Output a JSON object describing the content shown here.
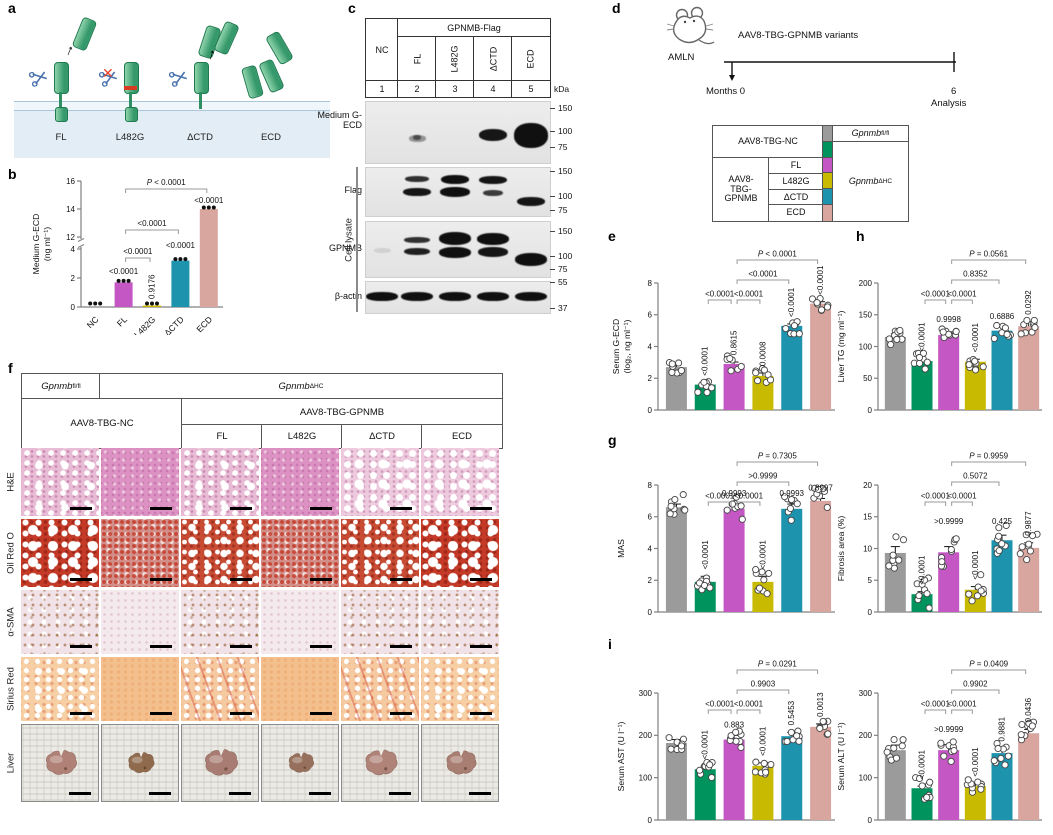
{
  "letters": {
    "a": "a",
    "b": "b",
    "c": "c",
    "d": "d",
    "e": "e",
    "f": "f",
    "g": "g",
    "h": "h",
    "i": "i"
  },
  "colors": {
    "groups": [
      "#9B9B9B",
      "#00935E",
      "#C457C4",
      "#C7BA00",
      "#1D93AE",
      "#D8A69E"
    ],
    "accent_green_construct": "#35996b",
    "scissors_blue": "#4a72ad",
    "block_red": "#e8432a"
  },
  "panel_a": {
    "labels": [
      "FL",
      "L482G",
      "ΔCTD",
      "ECD"
    ]
  },
  "panel_c": {
    "header_group": "GPNMB-Flag",
    "lanes": [
      "NC",
      "FL",
      "L482G",
      "ΔCTD",
      "ECD"
    ],
    "lane_numbers": [
      "1",
      "2",
      "3",
      "4",
      "5"
    ],
    "kda_label": "kDa",
    "side_label": "Cell lysate",
    "blots": [
      {
        "label": "Medium G-ECD",
        "markers": [
          150,
          100,
          75
        ]
      },
      {
        "label": "Flag",
        "markers": [
          150,
          100,
          75
        ]
      },
      {
        "label": "GPNMB",
        "markers": [
          150,
          100,
          75
        ]
      },
      {
        "label": "β-actin",
        "markers": [
          55,
          37
        ]
      }
    ]
  },
  "panel_d": {
    "model_label": "AMLN",
    "variants_label": "AAV8-TBG-GPNMB variants",
    "timeline_start": "Months 0",
    "timeline_end": "6",
    "timeline_end_sub": "Analysis",
    "table": {
      "nc_label": "AAV8-TBG-NC",
      "gpnmb_label": "AAV8-TBG-GPNMB",
      "variants": [
        "FL",
        "L482G",
        "ΔCTD",
        "ECD"
      ],
      "genotype_flfl": {
        "base": "Gpnmb",
        "sup": "fl/fl"
      },
      "genotype_dhc": {
        "base": "Gpnmb",
        "sup": "ΔHC"
      }
    }
  },
  "panel_f": {
    "genotype_flfl": {
      "base": "Gpnmb",
      "sup": "fl/fl"
    },
    "genotype_dhc": {
      "base": "Gpnmb",
      "sup": "ΔHC"
    },
    "nc_label": "AAV8-TBG-NC",
    "gpnmb_label": "AAV8-TBG-GPNMB",
    "variants": [
      "FL",
      "L482G",
      "ΔCTD",
      "ECD"
    ],
    "stains": [
      "H&E",
      "Oil Red O",
      "α-SMA",
      "Sirius Red",
      "Liver"
    ]
  },
  "chart_data": [
    {
      "id": "b",
      "type": "bar",
      "broken_axis": true,
      "ylabel_lines": [
        "Medium G-ECD",
        "(ng ml⁻¹)"
      ],
      "categories": [
        "NC",
        "FL",
        "L482G",
        "ΔCTD",
        "ECD"
      ],
      "values": [
        0.05,
        1.7,
        0.1,
        3.2,
        14
      ],
      "bar_colors": [
        "none",
        "#C457C4",
        "#C7BA00",
        "#1D93AE",
        "#D8A69E"
      ],
      "axis": {
        "lower_ticks": [
          0,
          2,
          4
        ],
        "upper_ticks": [
          12,
          14,
          16
        ]
      },
      "bar_pvalues": [
        null,
        {
          "text": "<0.0001",
          "rotated": false
        },
        {
          "text": "0.9176",
          "rotated": true
        },
        {
          "text": "<0.0001",
          "rotated": false
        },
        {
          "text": "<0.0001",
          "rotated": false
        }
      ],
      "brackets": [
        {
          "from": 1,
          "to": 4,
          "label": "P < 0.0001"
        },
        {
          "from": 1,
          "to": 3,
          "label": "<0.0001"
        },
        {
          "from": 1,
          "to": 2,
          "label": "<0.0001"
        }
      ]
    },
    {
      "id": "e",
      "type": "bar",
      "ylabel_lines": [
        "Serum G-ECD",
        "(log₂, ng ml⁻¹)"
      ],
      "ymax": 8,
      "yticks": [
        0,
        2,
        4,
        6,
        8
      ],
      "values": [
        2.7,
        1.6,
        2.9,
        2.15,
        5.3,
        6.7
      ],
      "errors": [
        0.1,
        0.12,
        0.12,
        0.18,
        0.12,
        0.12
      ],
      "spread": 0.55,
      "dots": 8,
      "bar_pvalues": [
        null,
        {
          "text": "<0.0001",
          "rotated": true
        },
        {
          "text": "0.8615",
          "rotated": true
        },
        {
          "text": "0.0008",
          "rotated": true
        },
        {
          "text": "<0.0001",
          "rotated": true
        },
        {
          "text": "<0.0001",
          "rotated": true
        }
      ],
      "brackets": [
        {
          "from": 1,
          "to": 2,
          "label": "<0.0001",
          "level": 0
        },
        {
          "from": 2,
          "to": 3,
          "label": "<0.0001",
          "level": 0
        },
        {
          "from": 2,
          "to": 4,
          "label": "<0.0001",
          "level": 1
        },
        {
          "from": 2,
          "to": 5,
          "label": "P < 0.0001",
          "level": 2
        }
      ]
    },
    {
      "id": "h",
      "type": "bar",
      "ylabel_lines": [
        "Liver TG (mg ml⁻¹)"
      ],
      "ymax": 200,
      "yticks": [
        0,
        50,
        100,
        150,
        200
      ],
      "values": [
        115,
        77,
        118,
        76,
        125,
        132
      ],
      "errors": [
        5,
        4,
        5,
        4,
        6,
        7
      ],
      "spread": 13,
      "dots": 9,
      "bar_pvalues": [
        null,
        {
          "text": "<0.0001",
          "rotated": true
        },
        {
          "text": "0.9998",
          "rotated": false
        },
        {
          "text": "<0.0001",
          "rotated": true
        },
        {
          "text": "0.6886",
          "rotated": false
        },
        {
          "text": "0.0292",
          "rotated": true
        }
      ],
      "brackets": [
        {
          "from": 1,
          "to": 2,
          "label": "<0.0001",
          "level": 0
        },
        {
          "from": 2,
          "to": 3,
          "label": "<0.0001",
          "level": 0
        },
        {
          "from": 2,
          "to": 4,
          "label": "0.8352",
          "level": 1
        },
        {
          "from": 2,
          "to": 5,
          "label": "P = 0.0561",
          "level": 2
        }
      ]
    },
    {
      "id": "g",
      "type": "bar",
      "ylabel_lines": [
        "MAS"
      ],
      "ymax": 8,
      "yticks": [
        0,
        2,
        4,
        6,
        8
      ],
      "values": [
        6.6,
        1.9,
        6.5,
        1.9,
        6.5,
        7.0
      ],
      "errors": [
        0.2,
        0.35,
        0.3,
        0.35,
        0.3,
        0.15
      ],
      "spread": 0.8,
      "dots": 9,
      "bar_pvalues": [
        null,
        {
          "text": "<0.0001",
          "rotated": true
        },
        {
          "text": "0.9993",
          "rotated": false
        },
        {
          "text": "<0.0001",
          "rotated": true
        },
        {
          "text": "0.9993",
          "rotated": false
        },
        {
          "text": "0.8997",
          "rotated": false
        }
      ],
      "brackets": [
        {
          "from": 1,
          "to": 2,
          "label": "<0.0001",
          "level": 0
        },
        {
          "from": 2,
          "to": 3,
          "label": "<0.0001",
          "level": 0
        },
        {
          "from": 2,
          "to": 4,
          "label": ">0.9999",
          "level": 1
        },
        {
          "from": 2,
          "to": 5,
          "label": "P = 0.7305",
          "level": 2
        }
      ]
    },
    {
      "id": "g2",
      "type": "bar",
      "ylabel_lines": [
        "Fibrosis area (%)"
      ],
      "ymax": 20,
      "yticks": [
        0,
        5,
        10,
        15,
        20
      ],
      "values": [
        9.3,
        2.8,
        9.4,
        3.5,
        11.3,
        10.1
      ],
      "errors": [
        1,
        0.4,
        0.9,
        0.5,
        0.8,
        0.8
      ],
      "spread": 2.6,
      "dots": 9,
      "bar_pvalues": [
        null,
        {
          "text": "<0.0001",
          "rotated": true
        },
        {
          "text": ">0.9999",
          "rotated": false
        },
        {
          "text": "<0.0001",
          "rotated": true
        },
        {
          "text": "0.425",
          "rotated": false
        },
        {
          "text": "0.9877",
          "rotated": true
        }
      ],
      "brackets": [
        {
          "from": 1,
          "to": 2,
          "label": "<0.0001",
          "level": 0
        },
        {
          "from": 2,
          "to": 3,
          "label": "<0.0001",
          "level": 0
        },
        {
          "from": 2,
          "to": 4,
          "label": "0.5072",
          "level": 1
        },
        {
          "from": 2,
          "to": 5,
          "label": "P = 0.9959",
          "level": 2
        }
      ]
    },
    {
      "id": "i",
      "type": "bar",
      "ylabel_lines": [
        "Serum AST (U l⁻¹)"
      ],
      "ymax": 300,
      "yticks": [
        0,
        100,
        200,
        300
      ],
      "values": [
        182,
        120,
        190,
        128,
        198,
        220
      ],
      "errors": [
        8,
        7,
        10,
        7,
        9,
        7
      ],
      "spread": 20,
      "dots": 9,
      "bar_pvalues": [
        null,
        {
          "text": "<0.0001",
          "rotated": true
        },
        {
          "text": "0.883",
          "rotated": false
        },
        {
          "text": "<0.0001",
          "rotated": true
        },
        {
          "text": "0.5453",
          "rotated": true
        },
        {
          "text": "0.0013",
          "rotated": true
        }
      ],
      "brackets": [
        {
          "from": 1,
          "to": 2,
          "label": "<0.0001",
          "level": 0
        },
        {
          "from": 2,
          "to": 3,
          "label": "<0.0001",
          "level": 0
        },
        {
          "from": 2,
          "to": 4,
          "label": "0.9903",
          "level": 1
        },
        {
          "from": 2,
          "to": 5,
          "label": "P = 0.0291",
          "level": 2
        }
      ]
    },
    {
      "id": "i2",
      "type": "bar",
      "ylabel_lines": [
        "Serum ALT (U l⁻¹)"
      ],
      "ymax": 300,
      "yticks": [
        0,
        100,
        200,
        300
      ],
      "values": [
        165,
        75,
        165,
        80,
        158,
        205
      ],
      "errors": [
        12,
        5,
        13,
        6,
        11,
        9
      ],
      "spread": 28,
      "dots": 9,
      "bar_pvalues": [
        null,
        {
          "text": "<0.0001",
          "rotated": true
        },
        {
          "text": ">0.9999",
          "rotated": false
        },
        {
          "text": "<0.0001",
          "rotated": true
        },
        {
          "text": "0.9881",
          "rotated": true
        },
        {
          "text": "0.0436",
          "rotated": true
        }
      ],
      "brackets": [
        {
          "from": 1,
          "to": 2,
          "label": "<0.0001",
          "level": 0
        },
        {
          "from": 2,
          "to": 3,
          "label": "<0.0001",
          "level": 0
        },
        {
          "from": 2,
          "to": 4,
          "label": "0.9902",
          "level": 1
        },
        {
          "from": 2,
          "to": 5,
          "label": "P = 0.0409",
          "level": 2
        }
      ]
    }
  ]
}
